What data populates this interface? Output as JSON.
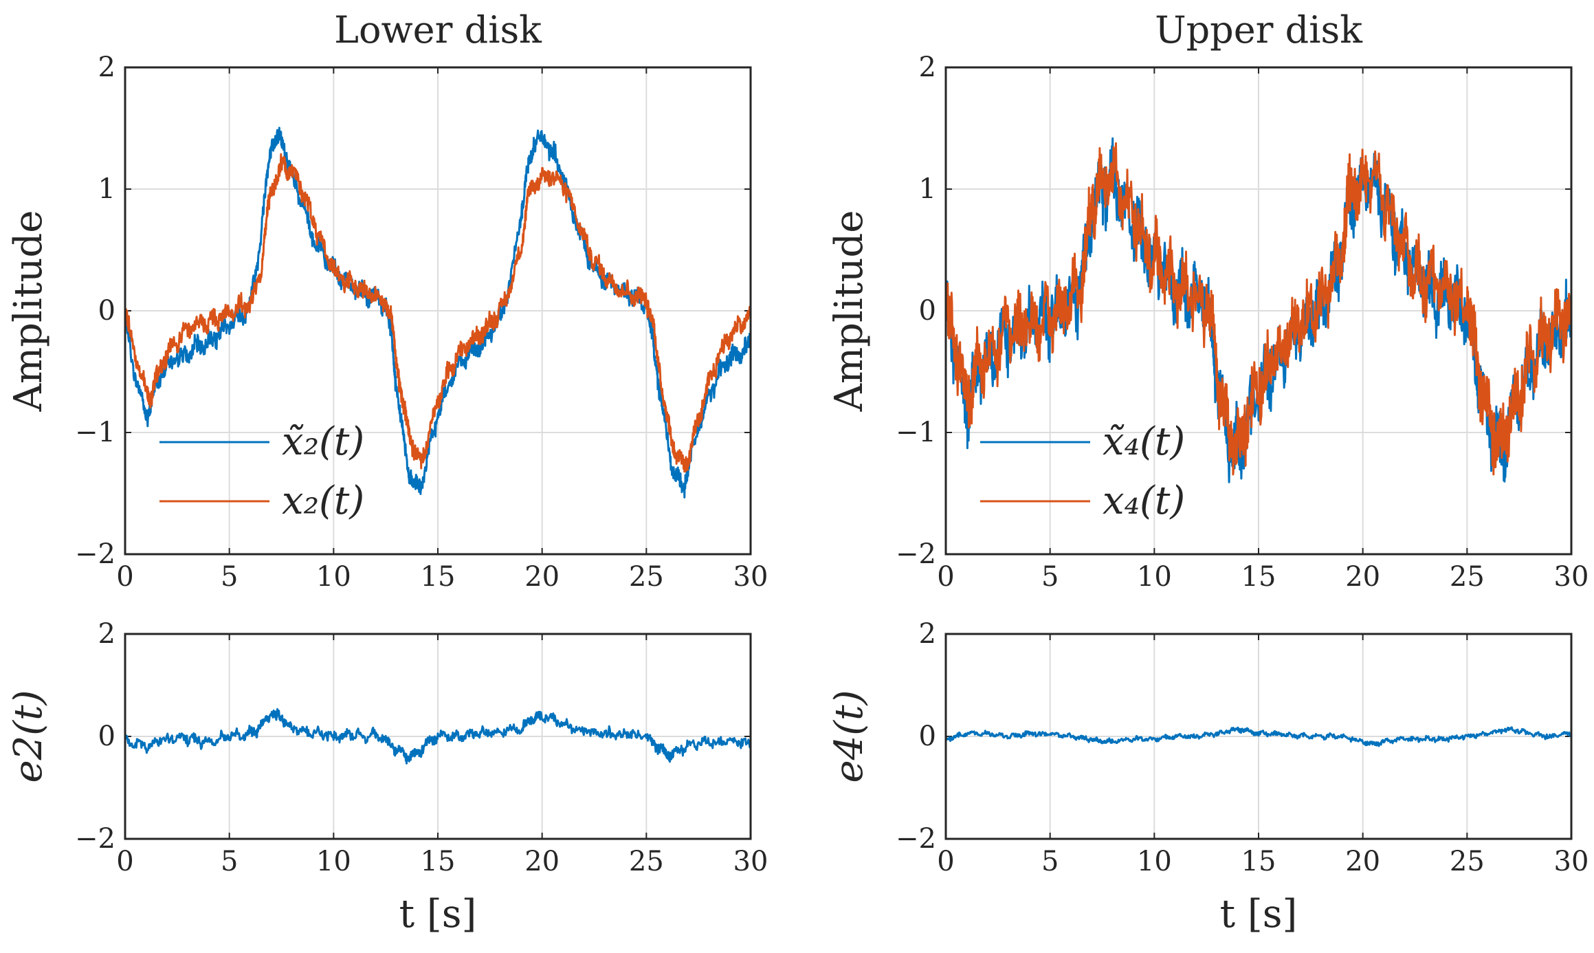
{
  "chart_data": [
    {
      "type": "line",
      "id": "lower-main",
      "title": "Lower disk",
      "xlabel": "",
      "ylabel": "Amplitude",
      "xlim": [
        0,
        30
      ],
      "ylim": [
        -2,
        2
      ],
      "xticks": [
        "0",
        "5",
        "10",
        "15",
        "20",
        "25",
        "30"
      ],
      "yticks": [
        "−2",
        "−1",
        "0",
        "1",
        "2"
      ],
      "grid": true,
      "legend_position": "bottom-left",
      "series": [
        {
          "name": "x̃̃2(t)",
          "legend_label": "x̃̃₂(t)",
          "color": "#0072BD",
          "x": [
            0,
            0.5,
            1.0,
            1.2,
            1.5,
            2.0,
            2.5,
            3.0,
            3.5,
            4.0,
            4.5,
            5.0,
            5.5,
            6.0,
            6.5,
            6.8,
            7.0,
            7.3,
            7.6,
            8.0,
            8.5,
            9.0,
            9.5,
            10.0,
            10.5,
            11.0,
            11.5,
            12.0,
            12.5,
            12.8,
            13.0,
            13.3,
            13.6,
            13.9,
            14.2,
            14.5,
            15.0,
            15.5,
            16.0,
            16.5,
            17.0,
            17.5,
            18.0,
            18.5,
            19.0,
            19.3,
            19.6,
            20.0,
            20.5,
            21.0,
            21.5,
            22.0,
            22.5,
            23.0,
            23.5,
            24.0,
            24.5,
            25.0,
            25.3,
            25.6,
            25.9,
            26.2,
            26.5,
            26.8,
            27.0,
            27.5,
            28.0,
            28.5,
            29.0,
            29.5,
            30.0
          ],
          "values": [
            -0.05,
            -0.55,
            -0.85,
            -0.8,
            -0.6,
            -0.45,
            -0.4,
            -0.35,
            -0.3,
            -0.25,
            -0.2,
            -0.1,
            -0.05,
            0.05,
            0.6,
            1.1,
            1.35,
            1.42,
            1.38,
            1.1,
            0.9,
            0.6,
            0.45,
            0.35,
            0.25,
            0.2,
            0.15,
            0.12,
            0.05,
            -0.25,
            -0.6,
            -1.0,
            -1.3,
            -1.45,
            -1.45,
            -1.2,
            -0.85,
            -0.6,
            -0.45,
            -0.35,
            -0.3,
            -0.2,
            -0.05,
            0.25,
            0.8,
            1.15,
            1.38,
            1.42,
            1.3,
            1.1,
            0.8,
            0.55,
            0.35,
            0.25,
            0.2,
            0.15,
            0.1,
            0.05,
            -0.25,
            -0.6,
            -0.95,
            -1.25,
            -1.4,
            -1.45,
            -1.3,
            -0.95,
            -0.7,
            -0.5,
            -0.4,
            -0.35,
            -0.25
          ]
        },
        {
          "name": "x2(t)",
          "legend_label": "x₂(t)",
          "color": "#D95319",
          "x": [
            0,
            0.5,
            1.0,
            1.2,
            1.5,
            2.0,
            2.5,
            3.0,
            3.5,
            4.0,
            4.5,
            5.0,
            5.5,
            6.0,
            6.5,
            6.8,
            7.0,
            7.3,
            7.6,
            8.0,
            8.5,
            9.0,
            9.5,
            10.0,
            10.5,
            11.0,
            11.5,
            12.0,
            12.5,
            12.8,
            13.0,
            13.3,
            13.6,
            13.9,
            14.2,
            14.5,
            15.0,
            15.5,
            16.0,
            16.5,
            17.0,
            17.5,
            18.0,
            18.5,
            19.0,
            19.3,
            19.6,
            20.0,
            20.5,
            21.0,
            21.5,
            22.0,
            22.5,
            23.0,
            23.5,
            24.0,
            24.5,
            25.0,
            25.3,
            25.6,
            25.9,
            26.2,
            26.5,
            26.8,
            27.0,
            27.5,
            28.0,
            28.5,
            29.0,
            29.5,
            30.0
          ],
          "values": [
            0.0,
            -0.4,
            -0.65,
            -0.7,
            -0.55,
            -0.35,
            -0.25,
            -0.15,
            -0.1,
            -0.1,
            -0.05,
            0.0,
            0.02,
            0.05,
            0.3,
            0.75,
            1.0,
            1.1,
            1.2,
            1.15,
            1.0,
            0.75,
            0.5,
            0.35,
            0.25,
            0.2,
            0.15,
            0.12,
            0.08,
            -0.1,
            -0.4,
            -0.75,
            -1.0,
            -1.15,
            -1.25,
            -1.05,
            -0.75,
            -0.5,
            -0.35,
            -0.25,
            -0.2,
            -0.1,
            0.0,
            0.2,
            0.55,
            0.9,
            1.05,
            1.1,
            1.1,
            1.05,
            0.85,
            0.6,
            0.4,
            0.3,
            0.2,
            0.15,
            0.12,
            0.1,
            -0.1,
            -0.45,
            -0.8,
            -1.05,
            -1.2,
            -1.3,
            -1.2,
            -0.9,
            -0.6,
            -0.35,
            -0.2,
            -0.1,
            -0.05
          ]
        }
      ]
    },
    {
      "type": "line",
      "id": "upper-main",
      "title": "Upper disk",
      "xlabel": "",
      "ylabel": "Amplitude",
      "xlim": [
        0,
        30
      ],
      "ylim": [
        -2,
        2
      ],
      "xticks": [
        "0",
        "5",
        "10",
        "15",
        "20",
        "25",
        "30"
      ],
      "yticks": [
        "−2",
        "−1",
        "0",
        "1",
        "2"
      ],
      "grid": true,
      "legend_position": "bottom-left",
      "series": [
        {
          "name": "x̃̃4(t)",
          "legend_label": "x̃̃₄(t)",
          "color": "#0072BD",
          "x": [
            0,
            0.5,
            1.0,
            1.2,
            1.5,
            2.0,
            2.5,
            3.0,
            3.5,
            4.0,
            4.5,
            5.0,
            5.5,
            6.0,
            6.5,
            6.8,
            7.0,
            7.3,
            7.6,
            8.0,
            8.5,
            9.0,
            9.5,
            10.0,
            10.5,
            11.0,
            11.5,
            12.0,
            12.5,
            12.8,
            13.0,
            13.3,
            13.6,
            13.9,
            14.2,
            14.5,
            15.0,
            15.5,
            16.0,
            16.5,
            17.0,
            17.5,
            18.0,
            18.5,
            19.0,
            19.3,
            19.6,
            20.0,
            20.5,
            21.0,
            21.5,
            22.0,
            22.5,
            23.0,
            23.5,
            24.0,
            24.5,
            25.0,
            25.3,
            25.6,
            25.9,
            26.2,
            26.5,
            26.8,
            27.0,
            27.5,
            28.0,
            28.5,
            29.0,
            29.5,
            30.0
          ],
          "values": [
            0.0,
            -0.35,
            -0.75,
            -0.7,
            -0.5,
            -0.4,
            -0.3,
            -0.2,
            -0.15,
            -0.15,
            -0.1,
            -0.05,
            0.0,
            0.05,
            0.2,
            0.5,
            0.85,
            0.95,
            1.0,
            1.05,
            0.9,
            0.75,
            0.55,
            0.4,
            0.3,
            0.2,
            0.15,
            0.1,
            0.05,
            -0.2,
            -0.55,
            -0.85,
            -1.05,
            -1.15,
            -1.1,
            -0.9,
            -0.7,
            -0.5,
            -0.35,
            -0.25,
            -0.15,
            -0.05,
            0.05,
            0.2,
            0.5,
            0.85,
            0.95,
            1.0,
            1.05,
            0.9,
            0.7,
            0.45,
            0.3,
            0.2,
            0.15,
            0.1,
            0.05,
            0.0,
            -0.3,
            -0.6,
            -0.85,
            -1.0,
            -1.1,
            -1.1,
            -0.95,
            -0.7,
            -0.45,
            -0.3,
            -0.2,
            -0.15,
            -0.1
          ]
        },
        {
          "name": "x4(t)",
          "legend_label": "x₄(t)",
          "color": "#D95319",
          "x": [
            0,
            0.5,
            1.0,
            1.2,
            1.5,
            2.0,
            2.5,
            3.0,
            3.5,
            4.0,
            4.5,
            5.0,
            5.5,
            6.0,
            6.5,
            6.8,
            7.0,
            7.3,
            7.6,
            8.0,
            8.5,
            9.0,
            9.5,
            10.0,
            10.5,
            11.0,
            11.5,
            12.0,
            12.5,
            12.8,
            13.0,
            13.3,
            13.6,
            13.9,
            14.2,
            14.5,
            15.0,
            15.5,
            16.0,
            16.5,
            17.0,
            17.5,
            18.0,
            18.5,
            19.0,
            19.3,
            19.6,
            20.0,
            20.5,
            21.0,
            21.5,
            22.0,
            22.5,
            23.0,
            23.5,
            24.0,
            24.5,
            25.0,
            25.3,
            25.6,
            25.9,
            26.2,
            26.5,
            26.8,
            27.0,
            27.5,
            28.0,
            28.5,
            29.0,
            29.5,
            30.0
          ],
          "values": [
            0.0,
            -0.3,
            -0.7,
            -0.65,
            -0.45,
            -0.35,
            -0.25,
            -0.15,
            -0.12,
            -0.12,
            -0.08,
            -0.03,
            0.02,
            0.07,
            0.22,
            0.55,
            0.9,
            1.0,
            1.05,
            1.1,
            0.95,
            0.8,
            0.6,
            0.42,
            0.32,
            0.22,
            0.17,
            0.12,
            0.07,
            -0.15,
            -0.5,
            -0.8,
            -1.0,
            -1.1,
            -1.05,
            -0.85,
            -0.65,
            -0.45,
            -0.3,
            -0.2,
            -0.1,
            0.0,
            0.1,
            0.25,
            0.55,
            0.9,
            1.0,
            1.05,
            1.1,
            0.95,
            0.75,
            0.5,
            0.35,
            0.25,
            0.2,
            0.15,
            0.1,
            0.05,
            -0.25,
            -0.55,
            -0.8,
            -0.95,
            -1.05,
            -1.05,
            -0.9,
            -0.65,
            -0.4,
            -0.25,
            -0.15,
            -0.1,
            -0.05
          ]
        }
      ]
    },
    {
      "type": "line",
      "id": "lower-error",
      "title": "",
      "xlabel": "t [s]",
      "ylabel": "e2(t)",
      "xlim": [
        0,
        30
      ],
      "ylim": [
        -2,
        2
      ],
      "xticks": [
        "0",
        "5",
        "10",
        "15",
        "20",
        "25",
        "30"
      ],
      "yticks": [
        "−2",
        "0",
        "2"
      ],
      "grid": true,
      "series": [
        {
          "name": "e2(t)",
          "color": "#0072BD",
          "x": [
            0,
            1,
            2,
            3,
            4,
            5,
            6,
            6.5,
            7,
            7.5,
            8,
            9,
            10,
            11,
            12,
            12.5,
            13,
            13.5,
            14,
            14.5,
            15,
            16,
            17,
            18,
            19,
            19.5,
            20,
            21,
            22,
            23,
            24,
            25,
            25.5,
            26,
            26.5,
            27,
            28,
            29,
            30
          ],
          "values": [
            -0.1,
            -0.2,
            -0.05,
            -0.05,
            -0.1,
            0.0,
            0.05,
            0.2,
            0.45,
            0.35,
            0.15,
            0.05,
            0.0,
            0.05,
            0.0,
            -0.05,
            -0.25,
            -0.4,
            -0.35,
            -0.1,
            0.0,
            0.0,
            0.05,
            0.1,
            0.15,
            0.35,
            0.4,
            0.25,
            0.1,
            0.05,
            0.05,
            0.0,
            -0.2,
            -0.35,
            -0.3,
            -0.15,
            -0.1,
            -0.1,
            -0.15
          ]
        }
      ]
    },
    {
      "type": "line",
      "id": "upper-error",
      "title": "",
      "xlabel": "t [s]",
      "ylabel": "e4(t)",
      "xlim": [
        0,
        30
      ],
      "ylim": [
        -2,
        2
      ],
      "xticks": [
        "0",
        "5",
        "10",
        "15",
        "20",
        "25",
        "30"
      ],
      "yticks": [
        "−2",
        "0",
        "2"
      ],
      "grid": true,
      "series": [
        {
          "name": "e4(t)",
          "color": "#0072BD",
          "x": [
            0,
            1,
            2,
            3,
            4,
            5,
            6,
            7,
            7.5,
            8,
            9,
            10,
            11,
            12,
            13,
            14,
            14.5,
            15,
            16,
            17,
            18,
            19,
            20,
            20.5,
            21,
            22,
            23,
            24,
            25,
            26,
            27,
            28,
            29,
            30
          ],
          "values": [
            -0.05,
            0.05,
            0.05,
            0.0,
            0.05,
            0.05,
            0.0,
            -0.05,
            -0.1,
            -0.1,
            -0.05,
            -0.05,
            0.0,
            0.0,
            0.05,
            0.15,
            0.1,
            0.05,
            0.05,
            0.0,
            0.0,
            0.0,
            -0.1,
            -0.15,
            -0.1,
            -0.05,
            -0.05,
            -0.05,
            0.0,
            0.05,
            0.15,
            0.05,
            0.0,
            0.05
          ]
        }
      ]
    }
  ]
}
